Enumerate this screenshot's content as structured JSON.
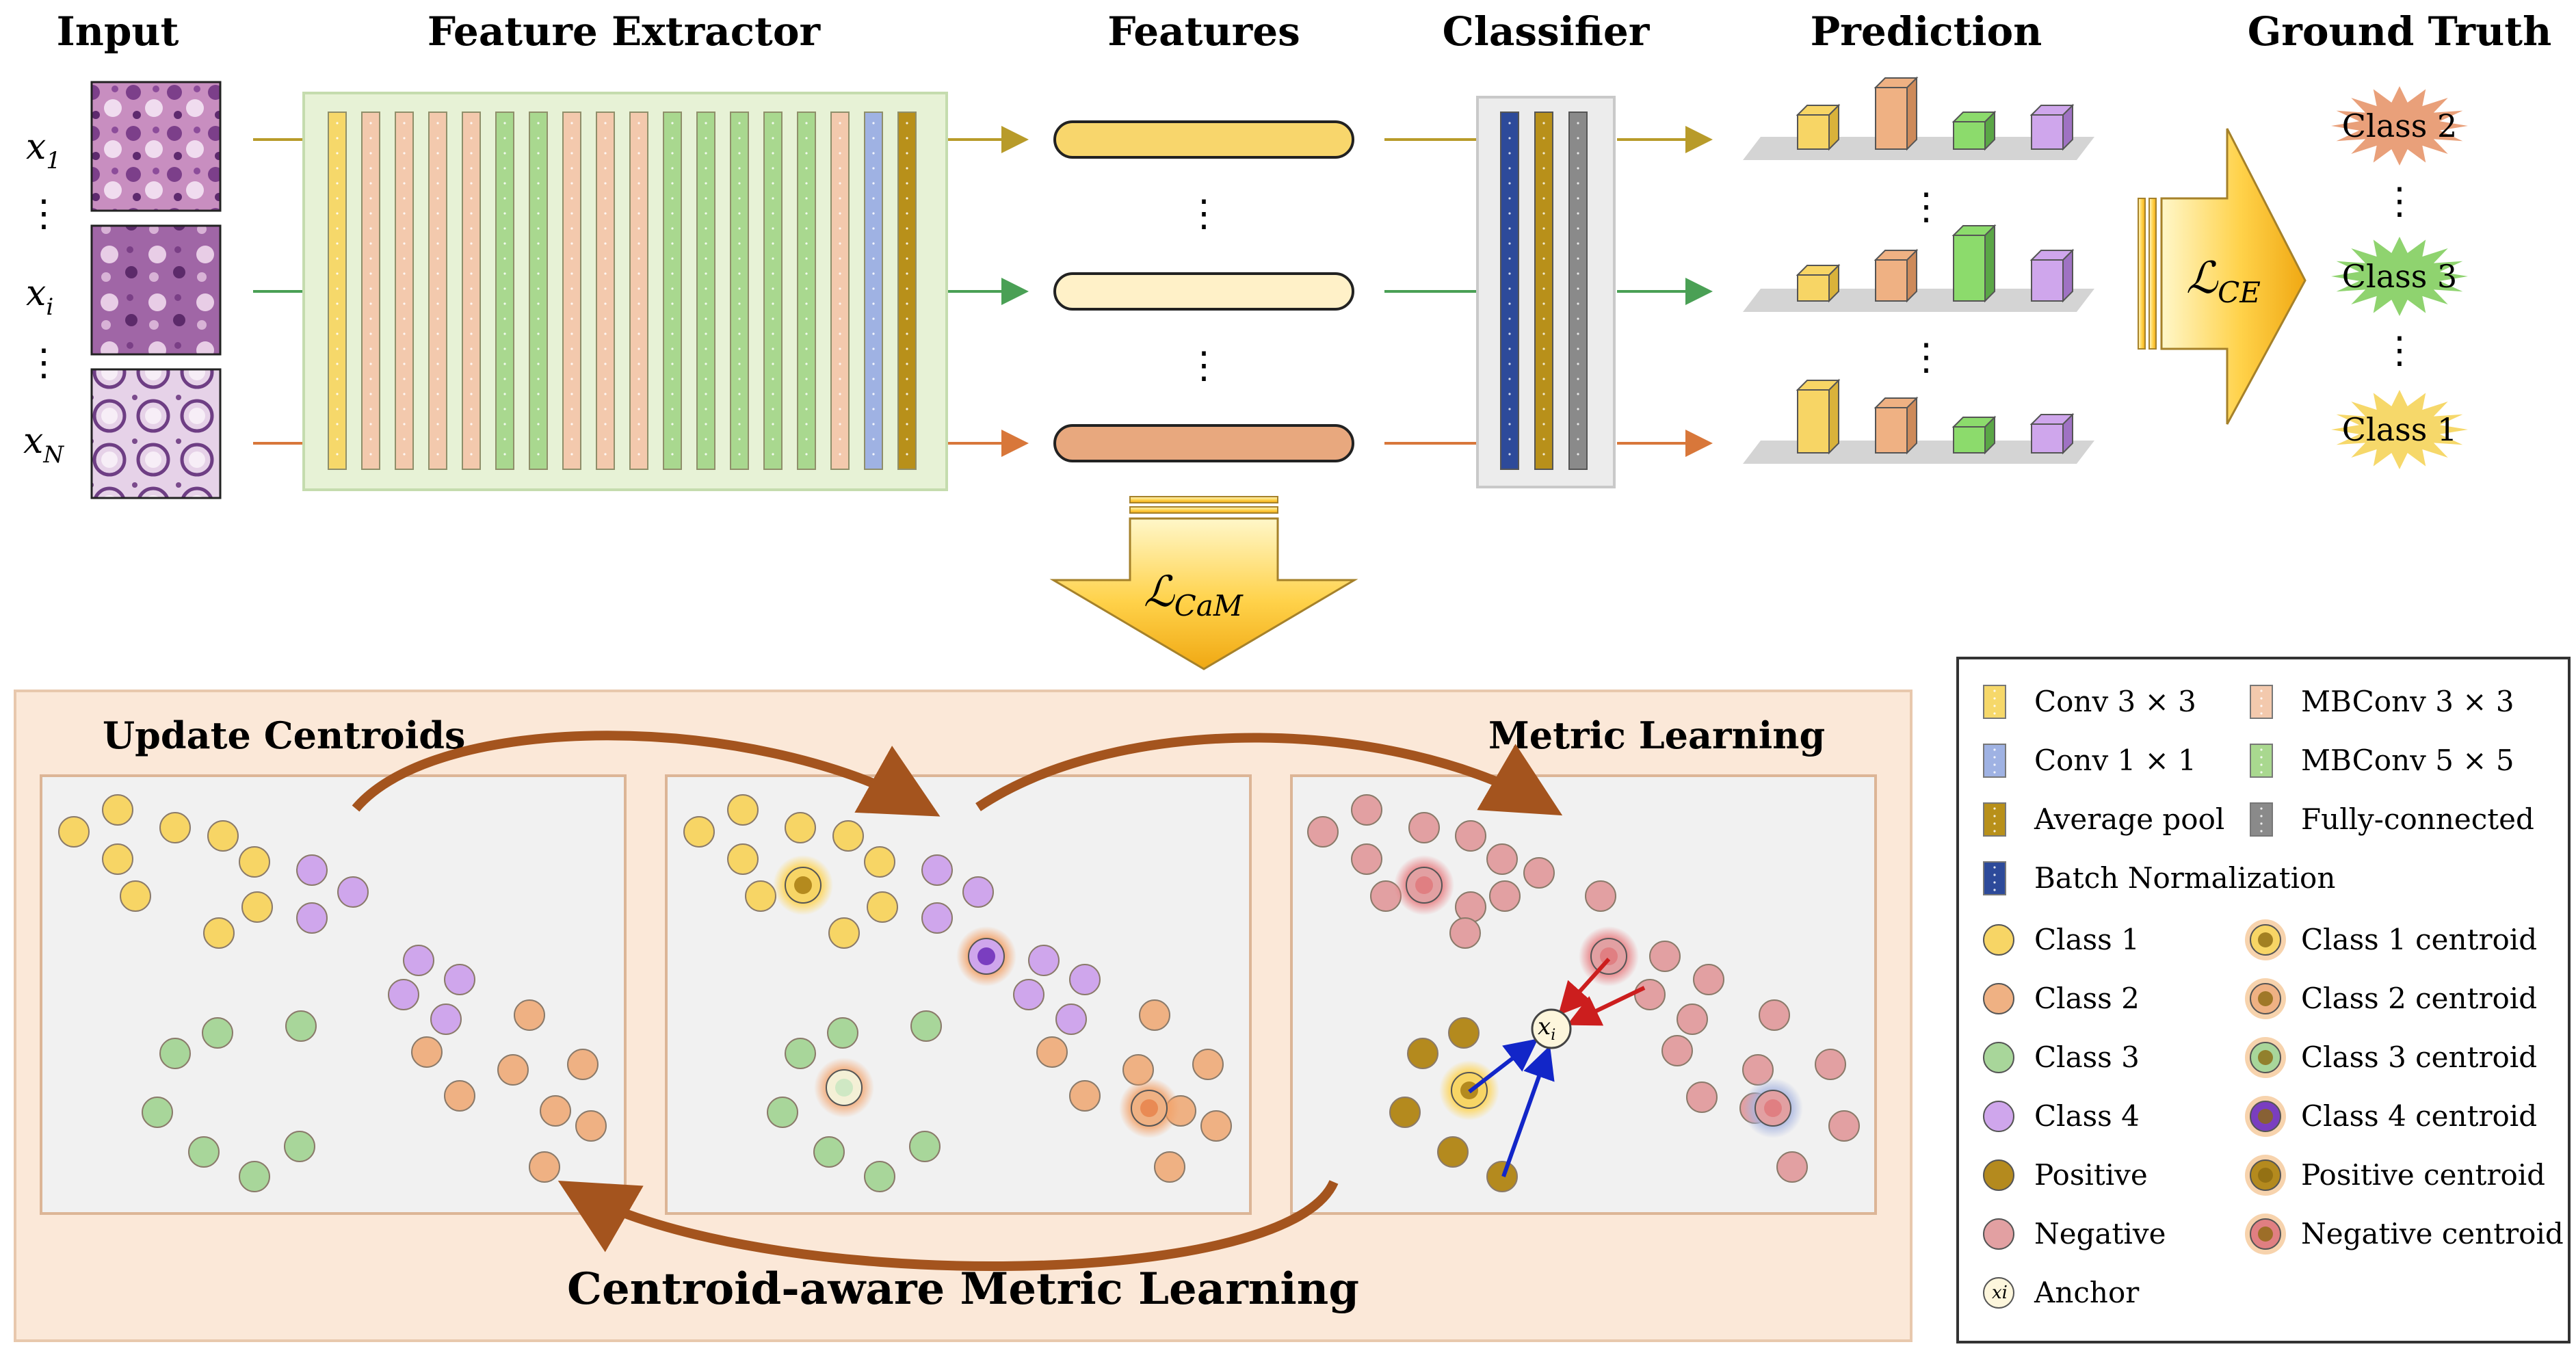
{
  "headers": {
    "input": "Input",
    "extractor": "Feature Extractor",
    "features": "Features",
    "classifier": "Classifier",
    "prediction": "Prediction",
    "ground_truth": "Ground Truth"
  },
  "inputs": [
    {
      "base": "x",
      "sub": "1"
    },
    {
      "base": "x",
      "sub": "i"
    },
    {
      "base": "x",
      "sub": "N"
    }
  ],
  "losses": {
    "ce": {
      "base": "ℒ",
      "sub": "CE"
    },
    "cam": {
      "base": "ℒ",
      "sub": "CaM"
    }
  },
  "ground_truth_labels": [
    "Class 2",
    "Class 3",
    "Class 1"
  ],
  "metric": {
    "update_centroids": "Update Centroids",
    "metric_learning": "Metric Learning",
    "bottom_title": "Centroid-aware Metric Learning",
    "anchor_label": {
      "base": "x",
      "sub": "i"
    }
  },
  "legend": {
    "layers": [
      {
        "label": "Conv 3 × 3",
        "color": "#f6d86a"
      },
      {
        "label": "MBConv 3 × 3",
        "color": "#f3c9ad"
      },
      {
        "label": "Conv 1 × 1",
        "color": "#9fb2e3"
      },
      {
        "label": "MBConv 5 × 5",
        "color": "#a9d88f"
      },
      {
        "label": "Average pool",
        "color": "#b8901a"
      },
      {
        "label": "Fully-connected",
        "color": "#8a8a8a"
      },
      {
        "label": "Batch Normalization",
        "color": "#2d4a9a"
      }
    ],
    "points": [
      {
        "label": "Class 1",
        "color": "#f7d565"
      },
      {
        "label": "Class 1 centroid",
        "color": "#f7d565",
        "centroid": true
      },
      {
        "label": "Class 2",
        "color": "#efb183"
      },
      {
        "label": "Class 2 centroid",
        "color": "#efb183",
        "centroid": true
      },
      {
        "label": "Class 3",
        "color": "#a8d69a"
      },
      {
        "label": "Class 3 centroid",
        "color": "#a8d69a",
        "centroid": true
      },
      {
        "label": "Class 4",
        "color": "#cfa6ec"
      },
      {
        "label": "Class 4 centroid",
        "color": "#7a3ec0",
        "centroid": true
      },
      {
        "label": "Positive",
        "color": "#b48a1e"
      },
      {
        "label": "Positive centroid",
        "color": "#b48a1e",
        "centroid": true
      },
      {
        "label": "Negative",
        "color": "#e2a0a2"
      },
      {
        "label": "Negative centroid",
        "color": "#e07f82",
        "centroid": true
      },
      {
        "label": "Anchor",
        "color": "#fdf6dc",
        "anchor": true
      }
    ]
  },
  "colors": {
    "yellow": "#f6d86a",
    "peach": "#f3c9ad",
    "green": "#a9d88f",
    "blue": "#9fb2e3",
    "gold": "#b8901a",
    "gray": "#8a8a8a",
    "navy": "#2d4a9a",
    "panel_bg": "#fbe8d8",
    "extractor_bg": "#e7f2d6"
  }
}
